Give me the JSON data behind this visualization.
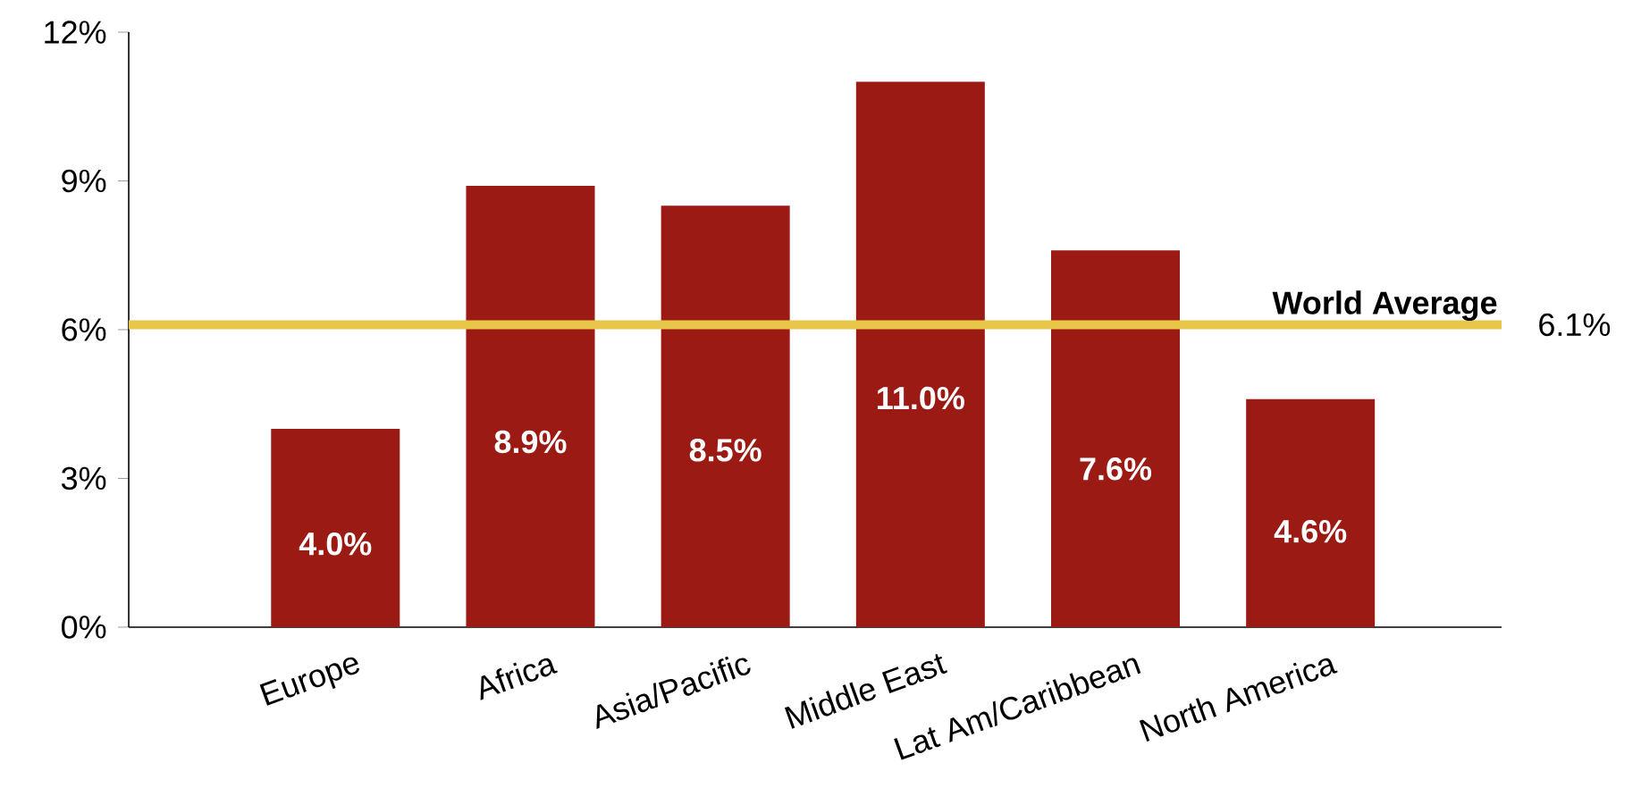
{
  "chart_data": {
    "type": "bar",
    "categories": [
      "Europe",
      "Africa",
      "Asia/Pacific",
      "Middle East",
      "Lat Am/Caribbean",
      "North America"
    ],
    "values": [
      4.0,
      8.9,
      8.5,
      11.0,
      7.6,
      4.6
    ],
    "value_labels": [
      "4.0%",
      "8.9%",
      "8.5%",
      "11.0%",
      "7.6%",
      "4.6%"
    ],
    "color": "#9b1a14",
    "ylim": [
      0,
      12
    ],
    "yticks": [
      {
        "value": 0,
        "label": "0%"
      },
      {
        "value": 3,
        "label": "3%"
      },
      {
        "value": 6,
        "label": "6%"
      },
      {
        "value": 9,
        "label": "9%"
      },
      {
        "value": 12,
        "label": "12%"
      }
    ],
    "ref_lines": [
      {
        "axis": "y",
        "value": 6.1,
        "label": "World Average",
        "color": "#e8c64a"
      }
    ],
    "annotations": [
      "6.1%"
    ]
  }
}
